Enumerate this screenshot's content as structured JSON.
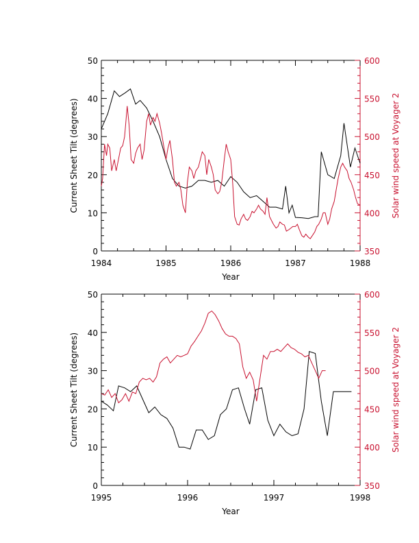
{
  "colors": {
    "tilt": "#000000",
    "speed": "#c8102e",
    "background": "#ffffff"
  },
  "chart_data": [
    {
      "type": "line",
      "title": "",
      "xlabel": "Year",
      "ylabel": "Current Sheet Tilt (degrees)",
      "y2label": "Solar wind speed at Voyager 2",
      "xlim": [
        1984,
        1988
      ],
      "ylim": [
        0,
        50
      ],
      "y2lim": [
        350,
        600
      ],
      "xticks": [
        "1984",
        "1985",
        "1986",
        "1987",
        "1988"
      ],
      "yticks": [
        "0",
        "10",
        "20",
        "30",
        "40",
        "50"
      ],
      "y2ticks": [
        "350",
        "400",
        "450",
        "500",
        "550",
        "600"
      ],
      "series": [
        {
          "name": "Current Sheet Tilt",
          "axis": "left",
          "color": "#000000",
          "x": [
            1984.0,
            1984.1,
            1984.2,
            1984.28,
            1984.37,
            1984.45,
            1984.53,
            1984.6,
            1984.7,
            1984.8,
            1984.9,
            1985.0,
            1985.1,
            1985.2,
            1985.3,
            1985.4,
            1985.5,
            1985.6,
            1985.7,
            1985.8,
            1985.9,
            1986.0,
            1986.1,
            1986.2,
            1986.3,
            1986.4,
            1986.5,
            1986.6,
            1986.7,
            1986.8,
            1986.85,
            1986.9,
            1986.95,
            1987.0,
            1987.1,
            1987.2,
            1987.3,
            1987.35,
            1987.4,
            1987.5,
            1987.6,
            1987.7,
            1987.75,
            1987.85,
            1987.92,
            1988.0
          ],
          "values": [
            32,
            36,
            42,
            40.5,
            41.5,
            42.5,
            38.5,
            39.5,
            37.5,
            34,
            30,
            24,
            19,
            17,
            16.5,
            17,
            18.5,
            18.5,
            18,
            18.5,
            17,
            19.5,
            18,
            15.5,
            14,
            14.5,
            13,
            11.5,
            11.5,
            11,
            17,
            10,
            12,
            8.8,
            8.7,
            8.5,
            9,
            9,
            26,
            20,
            19,
            25,
            33.5,
            22,
            27,
            23
          ]
        },
        {
          "name": "Solar wind speed at Voyager 2",
          "axis": "right",
          "color": "#c8102e",
          "x": [
            1984.0,
            1984.02,
            1984.05,
            1984.08,
            1984.1,
            1984.13,
            1984.16,
            1984.2,
            1984.23,
            1984.26,
            1984.3,
            1984.33,
            1984.36,
            1984.4,
            1984.43,
            1984.46,
            1984.5,
            1984.53,
            1984.56,
            1984.6,
            1984.63,
            1984.66,
            1984.7,
            1984.73,
            1984.76,
            1984.8,
            1984.83,
            1984.86,
            1984.9,
            1984.93,
            1984.96,
            1985.0,
            1985.03,
            1985.06,
            1985.1,
            1985.13,
            1985.16,
            1985.2,
            1985.23,
            1985.26,
            1985.3,
            1985.33,
            1985.36,
            1985.4,
            1985.43,
            1985.46,
            1985.5,
            1985.53,
            1985.56,
            1985.6,
            1985.63,
            1985.66,
            1985.7,
            1985.73,
            1985.76,
            1985.8,
            1985.83,
            1985.86,
            1985.9,
            1985.93,
            1985.96,
            1986.0,
            1986.03,
            1986.06,
            1986.1,
            1986.13,
            1986.16,
            1986.2,
            1986.23,
            1986.26,
            1986.3,
            1986.33,
            1986.36,
            1986.4,
            1986.43,
            1986.46,
            1986.5,
            1986.53,
            1986.56,
            1986.6,
            1986.63,
            1986.66,
            1986.7,
            1986.73,
            1986.76,
            1986.8,
            1986.83,
            1986.86,
            1986.9,
            1986.93,
            1986.96,
            1987.0,
            1987.03,
            1987.06,
            1987.1,
            1987.13,
            1987.16,
            1987.2,
            1987.23,
            1987.26,
            1987.3,
            1987.33,
            1987.36,
            1987.4,
            1987.43,
            1987.46,
            1987.5,
            1987.53,
            1987.56,
            1987.6,
            1987.63,
            1987.66,
            1987.7,
            1987.73,
            1987.76,
            1987.8,
            1987.83,
            1987.86,
            1987.9,
            1987.93,
            1987.96,
            1988.0
          ],
          "values": [
            435,
            445,
            490,
            475,
            490,
            485,
            455,
            470,
            455,
            468,
            485,
            488,
            500,
            540,
            515,
            470,
            465,
            478,
            485,
            490,
            470,
            482,
            520,
            530,
            515,
            525,
            520,
            530,
            518,
            505,
            490,
            470,
            485,
            495,
            470,
            440,
            435,
            440,
            430,
            410,
            400,
            440,
            460,
            455,
            445,
            455,
            460,
            470,
            480,
            475,
            450,
            470,
            460,
            450,
            430,
            425,
            428,
            440,
            470,
            490,
            480,
            470,
            440,
            395,
            385,
            384,
            392,
            398,
            392,
            390,
            395,
            402,
            400,
            405,
            410,
            405,
            402,
            398,
            420,
            395,
            390,
            385,
            380,
            382,
            388,
            385,
            384,
            376,
            378,
            380,
            382,
            382,
            385,
            378,
            370,
            368,
            372,
            368,
            366,
            370,
            375,
            382,
            385,
            392,
            400,
            400,
            385,
            392,
            405,
            415,
            430,
            445,
            460,
            465,
            460,
            455,
            445,
            440,
            430,
            420,
            412,
            410
          ]
        }
      ]
    },
    {
      "type": "line",
      "title": "",
      "xlabel": "Year",
      "ylabel": "Current Sheet Tilt (degrees)",
      "y2label": "Solar wind speed at Voyager 2",
      "xlim": [
        1995,
        1998
      ],
      "ylim": [
        0,
        50
      ],
      "y2lim": [
        350,
        600
      ],
      "xticks": [
        "1995",
        "1996",
        "1997",
        "1998"
      ],
      "yticks": [
        "0",
        "10",
        "20",
        "30",
        "40",
        "50"
      ],
      "y2ticks": [
        "350",
        "400",
        "450",
        "500",
        "550",
        "600"
      ],
      "series": [
        {
          "name": "Current Sheet Tilt",
          "axis": "left",
          "color": "#000000",
          "x": [
            1995.0,
            1995.07,
            1995.14,
            1995.2,
            1995.27,
            1995.34,
            1995.41,
            1995.48,
            1995.55,
            1995.62,
            1995.69,
            1995.76,
            1995.83,
            1995.9,
            1995.96,
            1996.03,
            1996.1,
            1996.17,
            1996.24,
            1996.31,
            1996.38,
            1996.45,
            1996.52,
            1996.59,
            1996.66,
            1996.72,
            1996.79,
            1996.86,
            1996.93,
            1997.0,
            1997.07,
            1997.14,
            1997.21,
            1997.28,
            1997.35,
            1997.41,
            1997.48,
            1997.55,
            1997.62,
            1997.69,
            1997.76,
            1997.83,
            1997.9
          ],
          "values": [
            22,
            21,
            19.5,
            26,
            25.5,
            24.5,
            26,
            22.5,
            19,
            20.5,
            18.5,
            17.5,
            15,
            10,
            10,
            9.5,
            14.5,
            14.5,
            12,
            13,
            18.5,
            20,
            25,
            25.5,
            20,
            16,
            25,
            25.5,
            17,
            13,
            16,
            14,
            13,
            13.5,
            20,
            35,
            34.5,
            22,
            13,
            24.5,
            24.5,
            24.5,
            24.5
          ]
        },
        {
          "name": "Solar wind speed at Voyager 2",
          "axis": "right",
          "color": "#c8102e",
          "x": [
            1995.0,
            1995.04,
            1995.08,
            1995.12,
            1995.16,
            1995.2,
            1995.24,
            1995.28,
            1995.32,
            1995.36,
            1995.4,
            1995.44,
            1995.48,
            1995.52,
            1995.56,
            1995.6,
            1995.64,
            1995.68,
            1995.72,
            1995.76,
            1995.8,
            1995.84,
            1995.88,
            1995.92,
            1995.96,
            1996.0,
            1996.04,
            1996.08,
            1996.12,
            1996.16,
            1996.2,
            1996.24,
            1996.28,
            1996.32,
            1996.36,
            1996.4,
            1996.44,
            1996.48,
            1996.52,
            1996.56,
            1996.6,
            1996.64,
            1996.68,
            1996.72,
            1996.76,
            1996.8,
            1996.84,
            1996.88,
            1996.92,
            1996.96,
            1997.0,
            1997.04,
            1997.08,
            1997.12,
            1997.16,
            1997.2,
            1997.24,
            1997.28,
            1997.32,
            1997.36,
            1997.4,
            1997.44,
            1997.48,
            1997.52,
            1997.56,
            1997.6
          ],
          "values": [
            470,
            468,
            475,
            465,
            470,
            458,
            462,
            470,
            460,
            472,
            470,
            485,
            490,
            488,
            490,
            485,
            492,
            510,
            515,
            518,
            510,
            515,
            520,
            518,
            520,
            522,
            532,
            538,
            545,
            552,
            562,
            575,
            578,
            573,
            565,
            555,
            548,
            545,
            545,
            542,
            535,
            505,
            490,
            498,
            488,
            460,
            490,
            520,
            515,
            525,
            525,
            528,
            525,
            530,
            535,
            530,
            528,
            524,
            522,
            518,
            520,
            510,
            500,
            490,
            500,
            500
          ]
        }
      ]
    }
  ]
}
